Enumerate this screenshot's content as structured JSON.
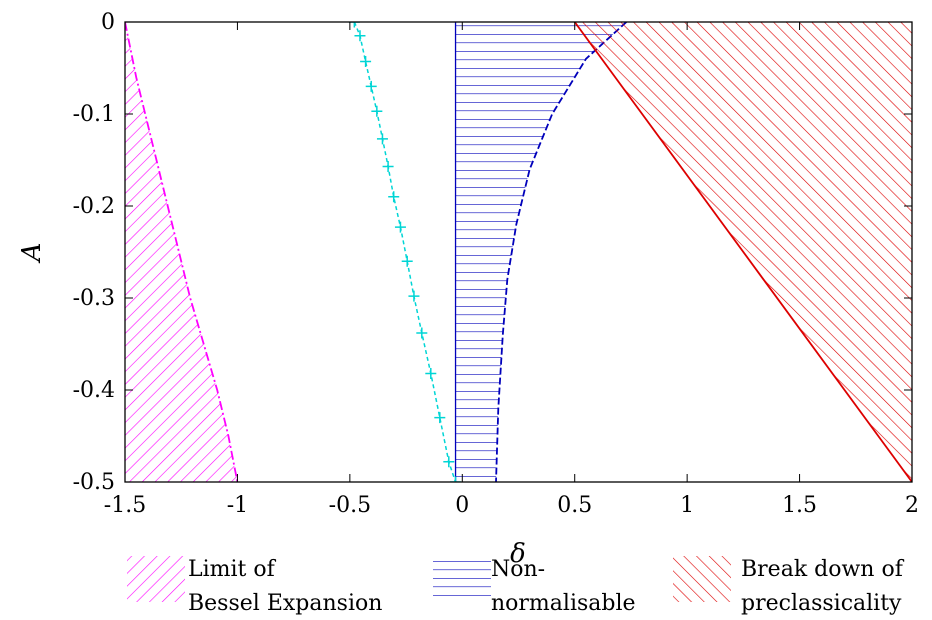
{
  "chart_data": {
    "type": "area",
    "title": "",
    "xlabel": "δ",
    "ylabel": "A",
    "xlim": [
      -1.5,
      2
    ],
    "ylim": [
      -0.5,
      0
    ],
    "xticks": [
      -1.5,
      -1,
      -0.5,
      0,
      0.5,
      1,
      1.5,
      2
    ],
    "xtick_labels": [
      "-1.5",
      "-1",
      "-0.5",
      "0",
      "0.5",
      "1",
      "1.5",
      "2"
    ],
    "yticks": [
      0,
      -0.1,
      -0.2,
      -0.3,
      -0.4,
      -0.5
    ],
    "ytick_labels": [
      "0",
      "-0.1",
      "-0.2",
      "-0.3",
      "-0.4",
      "-0.5"
    ],
    "grid": false,
    "legend_position": "bottom",
    "regions": [
      {
        "legend_lines": [
          "Limit of",
          "Bessel Expansion"
        ],
        "color": "#ff00ff",
        "hatch": "backslash",
        "fill_side": "left",
        "boundary": {
          "x": [
            -1.5,
            -1.45,
            -1.39,
            -1.33,
            -1.27,
            -1.21,
            -1.15,
            -1.09,
            -1.04,
            -1.0
          ],
          "y": [
            0,
            -0.06,
            -0.12,
            -0.18,
            -0.24,
            -0.3,
            -0.35,
            -0.4,
            -0.45,
            -0.5
          ]
        }
      },
      {
        "legend_lines": [
          "Non-",
          "normalisable"
        ],
        "color": "#0000bb",
        "hatch": "horizontal",
        "fill_side": "between",
        "left_edge_x": -0.03,
        "boundary": {
          "x": [
            0.73,
            0.55,
            0.4,
            0.3,
            0.24,
            0.2,
            0.18,
            0.16,
            0.15
          ],
          "y": [
            0,
            -0.04,
            -0.1,
            -0.16,
            -0.22,
            -0.28,
            -0.34,
            -0.42,
            -0.5
          ]
        }
      },
      {
        "legend_lines": [
          "Break down of",
          "preclassicality"
        ],
        "color": "#dd0000",
        "hatch": "slash",
        "fill_side": "right",
        "boundary": {
          "x": [
            0.5,
            2.0
          ],
          "y": [
            0,
            -0.5
          ]
        }
      }
    ],
    "series": [
      {
        "color": "#00d5d5",
        "marker": "+",
        "x": [
          -0.48,
          -0.455,
          -0.43,
          -0.405,
          -0.38,
          -0.355,
          -0.33,
          -0.305,
          -0.275,
          -0.245,
          -0.215,
          -0.18,
          -0.14,
          -0.1,
          -0.06,
          -0.03
        ],
        "y": [
          0,
          -0.015,
          -0.043,
          -0.07,
          -0.097,
          -0.127,
          -0.157,
          -0.19,
          -0.223,
          -0.26,
          -0.298,
          -0.338,
          -0.382,
          -0.43,
          -0.478,
          -0.5
        ]
      }
    ]
  }
}
